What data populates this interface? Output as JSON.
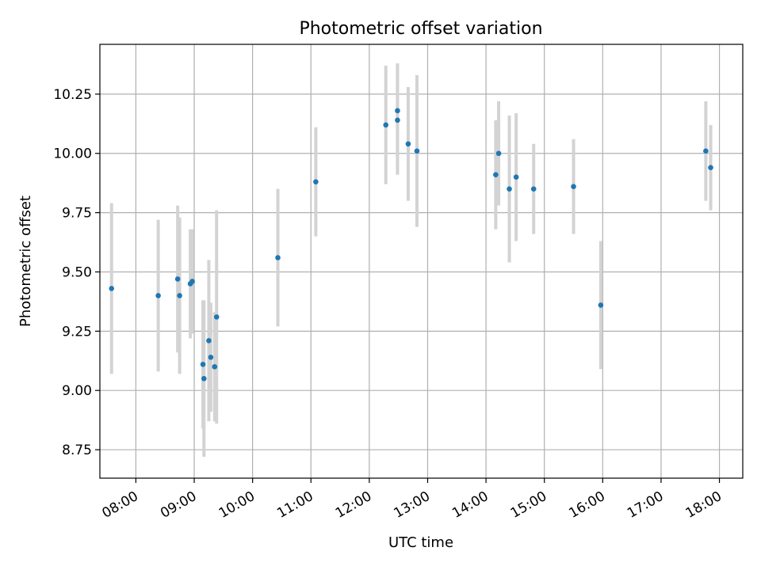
{
  "chart_data": {
    "type": "scatter",
    "title": "Photometric offset variation",
    "xlabel": "UTC time",
    "ylabel": "Photometric offset",
    "x_ticks": [
      "08:00",
      "09:00",
      "10:00",
      "11:00",
      "12:00",
      "13:00",
      "14:00",
      "15:00",
      "16:00",
      "17:00",
      "18:00"
    ],
    "y_ticks": [
      "8.75",
      "9.00",
      "9.25",
      "9.50",
      "9.75",
      "10.00",
      "10.25"
    ],
    "xlim": [
      "07:23",
      "18:24"
    ],
    "ylim": [
      8.63,
      10.46
    ],
    "grid": true,
    "colors": {
      "point": "#1f77b4",
      "errorbar": "#d3d3d3",
      "grid": "#b0b0b0"
    },
    "points": [
      {
        "time": "07:35",
        "y": 9.43,
        "yerr": 0.36
      },
      {
        "time": "08:23",
        "y": 9.4,
        "yerr": 0.32
      },
      {
        "time": "08:43",
        "y": 9.47,
        "yerr": 0.31
      },
      {
        "time": "08:45",
        "y": 9.4,
        "yerr": 0.33
      },
      {
        "time": "08:56",
        "y": 9.45,
        "yerr": 0.23
      },
      {
        "time": "08:58",
        "y": 9.46,
        "yerr": 0.22
      },
      {
        "time": "09:09",
        "y": 9.11,
        "yerr": 0.27
      },
      {
        "time": "09:10",
        "y": 9.05,
        "yerr": 0.33
      },
      {
        "time": "09:15",
        "y": 9.21,
        "yerr": 0.34
      },
      {
        "time": "09:17",
        "y": 9.14,
        "yerr": 0.23
      },
      {
        "time": "09:21",
        "y": 9.1,
        "yerr": 0.23
      },
      {
        "time": "09:23",
        "y": 9.31,
        "yerr": 0.45
      },
      {
        "time": "10:26",
        "y": 9.56,
        "yerr": 0.29
      },
      {
        "time": "11:05",
        "y": 9.88,
        "yerr": 0.23
      },
      {
        "time": "12:17",
        "y": 10.12,
        "yerr": 0.25
      },
      {
        "time": "12:29",
        "y": 10.18,
        "yerr": 0.2
      },
      {
        "time": "12:29",
        "y": 10.14,
        "yerr": 0.23
      },
      {
        "time": "12:40",
        "y": 10.04,
        "yerr": 0.24
      },
      {
        "time": "12:49",
        "y": 10.01,
        "yerr": 0.32
      },
      {
        "time": "14:10",
        "y": 9.91,
        "yerr": 0.23
      },
      {
        "time": "14:13",
        "y": 10.0,
        "yerr": 0.22
      },
      {
        "time": "14:24",
        "y": 9.85,
        "yerr": 0.31
      },
      {
        "time": "14:31",
        "y": 9.9,
        "yerr": 0.27
      },
      {
        "time": "14:49",
        "y": 9.85,
        "yerr": 0.19
      },
      {
        "time": "15:30",
        "y": 9.86,
        "yerr": 0.2
      },
      {
        "time": "15:58",
        "y": 9.36,
        "yerr": 0.27
      },
      {
        "time": "17:46",
        "y": 10.01,
        "yerr": 0.21
      },
      {
        "time": "17:51",
        "y": 9.94,
        "yerr": 0.18
      }
    ]
  }
}
